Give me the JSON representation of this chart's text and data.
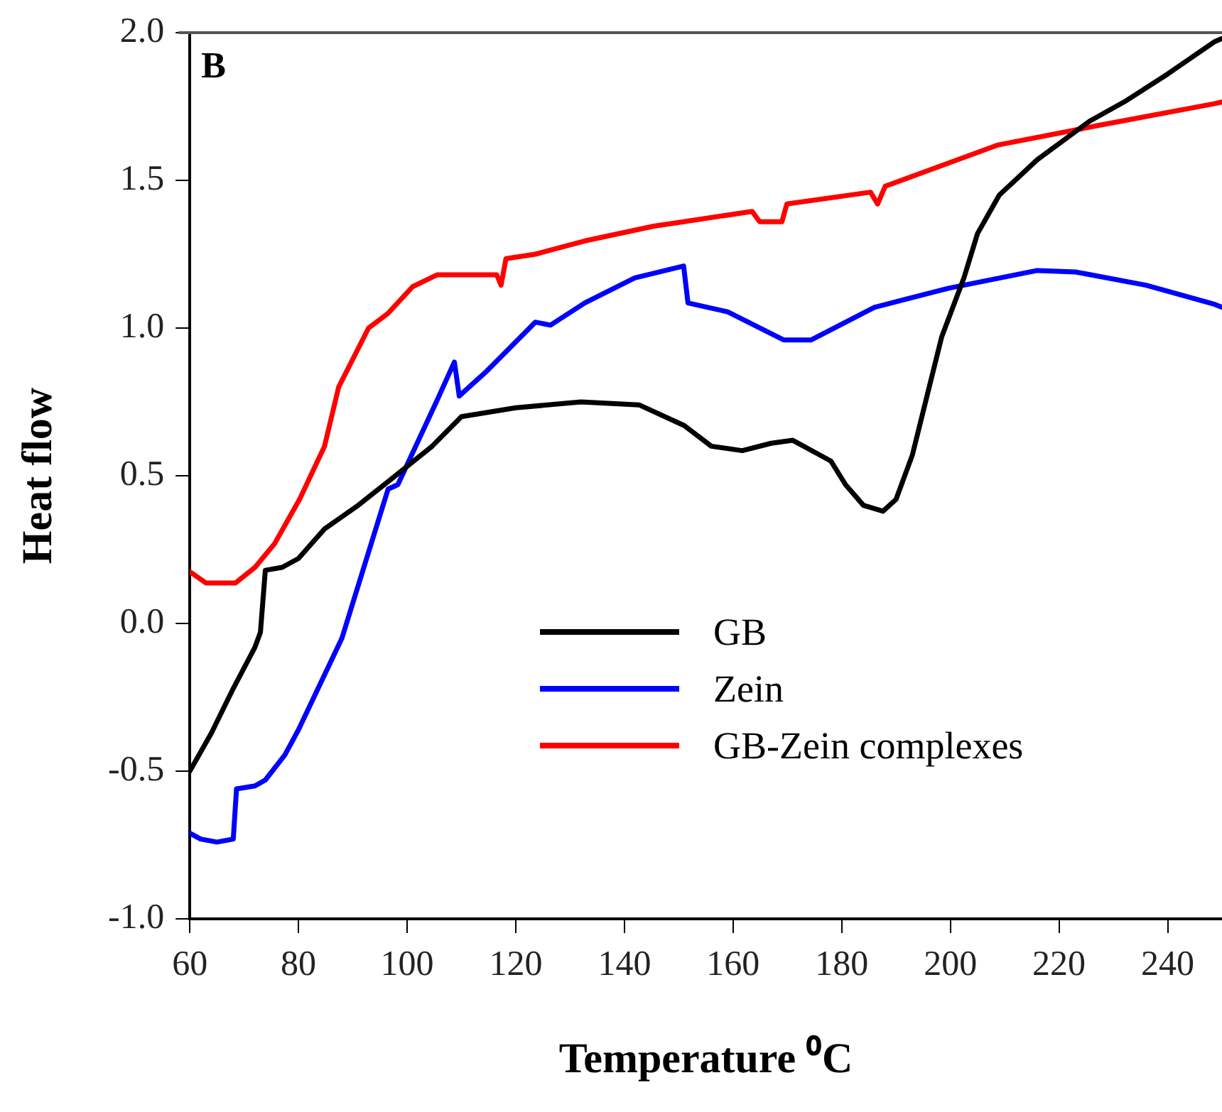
{
  "chart_data": {
    "type": "line",
    "xlabel": "Temperature ⁰C",
    "ylabel": "Heat flow",
    "annotations": [
      "B"
    ],
    "xlim": [
      60,
      250
    ],
    "xticks": [
      60,
      80,
      100,
      120,
      140,
      160,
      180,
      200,
      220,
      240
    ],
    "ylim": [
      -1.0,
      2.0
    ],
    "yticks": [
      {
        "value": -1,
        "label": "-1.0"
      },
      {
        "value": -0.5,
        "label": "-0.5"
      },
      {
        "value": 0,
        "label": "0.0"
      },
      {
        "value": 0.5,
        "label": "0.5"
      },
      {
        "value": 1,
        "label": "1.0"
      },
      {
        "value": 1.5,
        "label": "1.5"
      },
      {
        "value": 2,
        "label": "2.0"
      }
    ],
    "grid": false,
    "legend": "bottom right",
    "marker": "none",
    "line_style": "solid",
    "series": [
      {
        "name": "GB",
        "color": "#000000",
        "x": [
          60,
          64,
          68,
          72,
          73,
          73.9,
          77,
          80,
          84.8,
          91,
          96.5,
          104.6,
          110,
          120,
          132,
          142.7,
          151,
          156,
          161.7,
          167,
          171,
          175,
          178,
          180.7,
          184,
          187.6,
          190,
          193,
          195.7,
          198.4,
          202.5,
          205,
          209,
          216,
          225.6,
          232.4,
          240,
          248.7,
          250
        ],
        "values": [
          -0.5,
          -0.37,
          -0.22,
          -0.08,
          -0.03,
          0.18,
          0.19,
          0.22,
          0.32,
          0.4,
          0.48,
          0.6,
          0.7,
          0.73,
          0.75,
          0.74,
          0.67,
          0.6,
          0.585,
          0.61,
          0.62,
          0.58,
          0.55,
          0.47,
          0.4,
          0.38,
          0.42,
          0.57,
          0.77,
          0.97,
          1.17,
          1.32,
          1.45,
          1.57,
          1.7,
          1.77,
          1.86,
          1.97,
          1.98
        ]
      },
      {
        "name": "Zein",
        "color": "#0000ff",
        "x": [
          60,
          62,
          65,
          68,
          68.6,
          72,
          73.9,
          77.5,
          80,
          88,
          96.5,
          98.3,
          105.5,
          108.7,
          109.6,
          114.7,
          123.6,
          126.4,
          132.7,
          141.9,
          150.9,
          151.7,
          159,
          169.3,
          174.4,
          186,
          199.7,
          216,
          223,
          236,
          248.7,
          250
        ],
        "values": [
          -0.71,
          -0.73,
          -0.74,
          -0.73,
          -0.56,
          -0.55,
          -0.53,
          -0.445,
          -0.36,
          -0.05,
          0.455,
          0.47,
          0.755,
          0.885,
          0.77,
          0.855,
          1.02,
          1.01,
          1.085,
          1.17,
          1.21,
          1.085,
          1.055,
          0.96,
          0.96,
          1.07,
          1.135,
          1.195,
          1.19,
          1.145,
          1.08,
          1.07
        ]
      },
      {
        "name": "GB-Zein complexes",
        "color": "#ff0000",
        "x": [
          60,
          63,
          68.4,
          72,
          75.6,
          80.2,
          84.8,
          87.4,
          92.9,
          96.5,
          101,
          105.5,
          116.5,
          117.3,
          118.2,
          123.6,
          132.7,
          145.4,
          150.9,
          163.5,
          164.9,
          169,
          169.9,
          185.3,
          186.6,
          188,
          208.8,
          227,
          248.7,
          250
        ],
        "values": [
          0.175,
          0.137,
          0.137,
          0.19,
          0.27,
          0.42,
          0.6,
          0.8,
          1.0,
          1.05,
          1.14,
          1.18,
          1.18,
          1.145,
          1.235,
          1.25,
          1.295,
          1.345,
          1.36,
          1.395,
          1.36,
          1.36,
          1.42,
          1.46,
          1.42,
          1.48,
          1.62,
          1.685,
          1.76,
          1.765
        ]
      }
    ]
  }
}
